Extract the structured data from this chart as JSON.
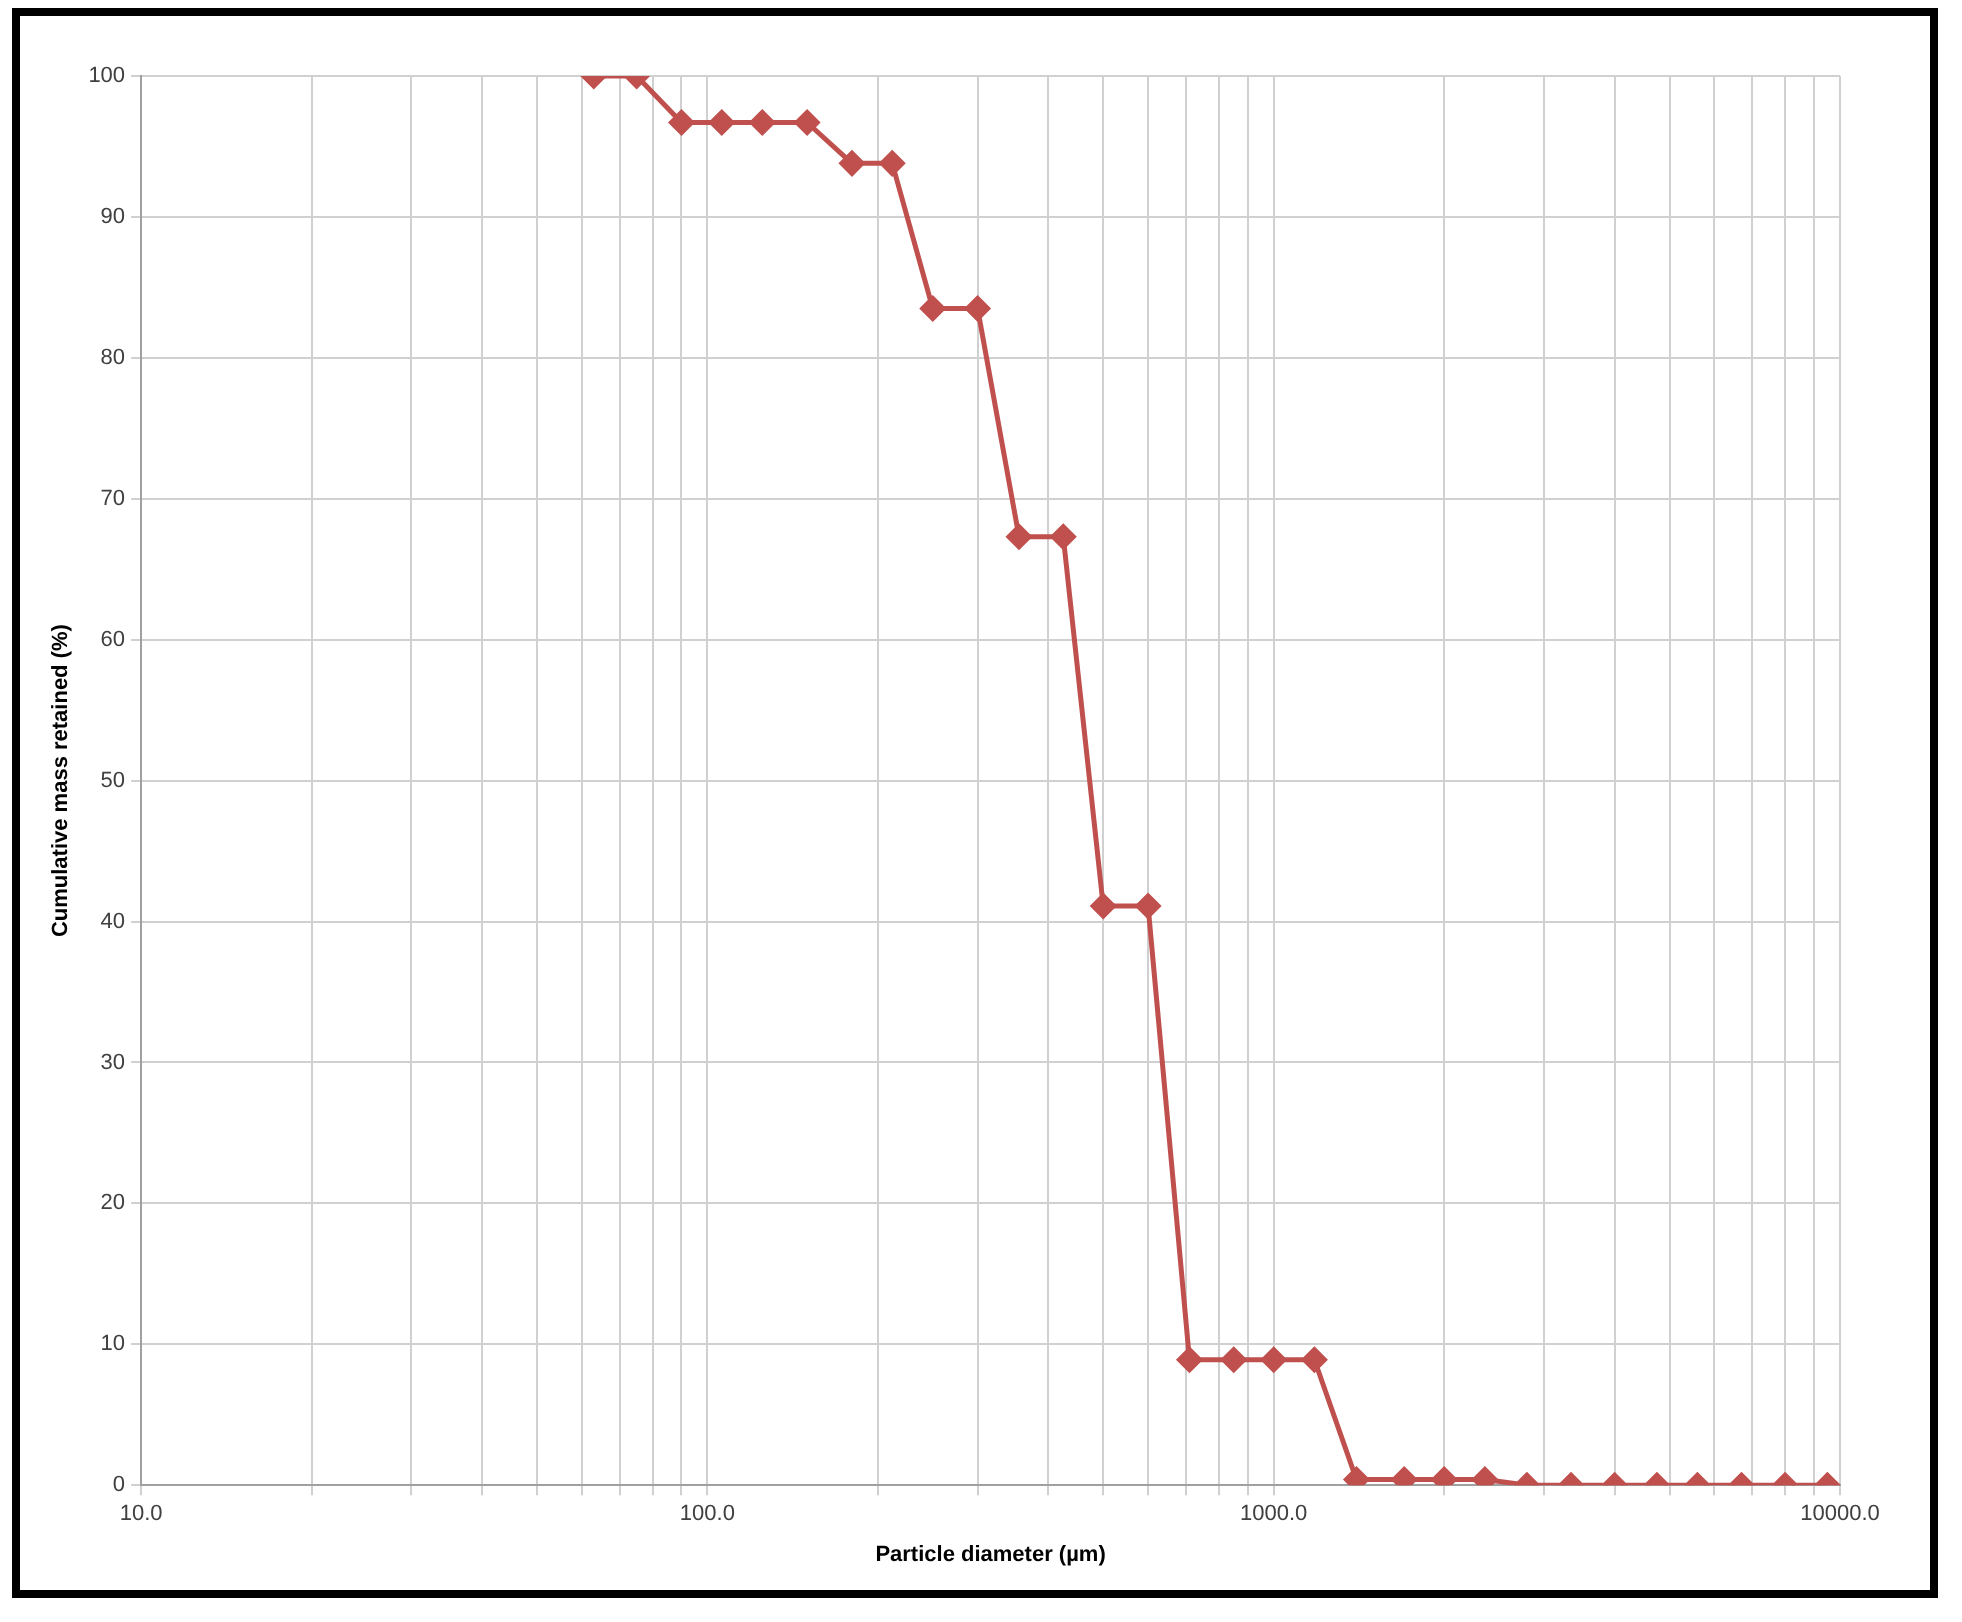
{
  "chart_data": {
    "type": "line",
    "xlabel": "Particle diameter (µm)",
    "ylabel": "Cumulative mass retained (%)",
    "x": [
      63,
      75,
      90,
      106,
      125,
      150,
      180,
      212,
      250,
      300,
      355,
      425,
      500,
      600,
      710,
      850,
      1000,
      1180,
      1400,
      1700,
      2000,
      2360,
      2800,
      3350,
      4000,
      4750,
      5600,
      6700,
      8000,
      9500
    ],
    "series": [
      {
        "color": "#c0504d",
        "values": [
          100,
          100,
          96.7,
          96.7,
          96.7,
          96.7,
          93.8,
          93.8,
          83.5,
          83.5,
          67.3,
          67.3,
          41.1,
          41.1,
          8.9,
          8.9,
          8.9,
          8.9,
          0.4,
          0.4,
          0.4,
          0.4,
          0,
          0,
          0,
          0,
          0,
          0,
          0,
          0
        ]
      }
    ],
    "log": "x",
    "xlim": [
      10,
      10000
    ],
    "xticks": [
      {
        "value": 10,
        "label": "10.0"
      },
      {
        "value": 20,
        "label": null
      },
      {
        "value": 30,
        "label": null
      },
      {
        "value": 40,
        "label": null
      },
      {
        "value": 50,
        "label": null
      },
      {
        "value": 60,
        "label": null
      },
      {
        "value": 70,
        "label": null
      },
      {
        "value": 80,
        "label": null
      },
      {
        "value": 90,
        "label": null
      },
      {
        "value": 100,
        "label": "100.0"
      },
      {
        "value": 200,
        "label": null
      },
      {
        "value": 300,
        "label": null
      },
      {
        "value": 400,
        "label": null
      },
      {
        "value": 500,
        "label": null
      },
      {
        "value": 600,
        "label": null
      },
      {
        "value": 700,
        "label": null
      },
      {
        "value": 800,
        "label": null
      },
      {
        "value": 900,
        "label": null
      },
      {
        "value": 1000,
        "label": "1000.0"
      },
      {
        "value": 2000,
        "label": null
      },
      {
        "value": 3000,
        "label": null
      },
      {
        "value": 4000,
        "label": null
      },
      {
        "value": 5000,
        "label": null
      },
      {
        "value": 6000,
        "label": null
      },
      {
        "value": 7000,
        "label": null
      },
      {
        "value": 8000,
        "label": null
      },
      {
        "value": 9000,
        "label": null
      },
      {
        "value": 10000,
        "label": "10000.0"
      }
    ],
    "ylim": [
      0,
      100
    ],
    "yticks": [
      0,
      10,
      20,
      30,
      40,
      50,
      60,
      70,
      80,
      90,
      100
    ],
    "grid": true,
    "legend": false,
    "marker": "diamond",
    "line_style": "solid"
  }
}
